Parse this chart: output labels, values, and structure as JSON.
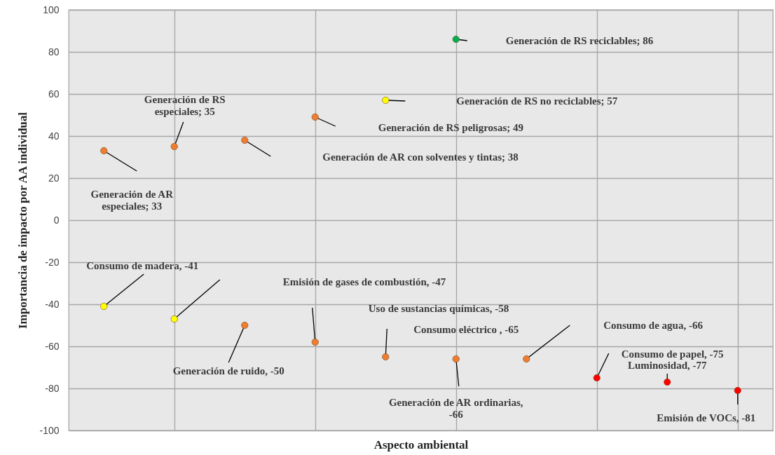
{
  "chart_data": {
    "type": "scatter",
    "xlabel": "Aspecto ambiental",
    "ylabel": "Importancia de impacto por AA individual",
    "categories": [
      null,
      null,
      null,
      null,
      null,
      null,
      null,
      null,
      null,
      null
    ],
    "ylim": [
      -100,
      100
    ],
    "yticks": [
      -100,
      -80,
      -60,
      -40,
      -20,
      0,
      20,
      40,
      60,
      80,
      100
    ],
    "grid": true,
    "marker": "circle",
    "series": [
      {
        "values": [
          33,
          35,
          38,
          49,
          57,
          86,
          null,
          null,
          null,
          null
        ],
        "colors": [
          "#ed7d31",
          "#ed7d31",
          "#ed7d31",
          "#ed7d31",
          "#ffff00",
          "#00b050",
          null,
          null,
          null,
          null
        ]
      },
      {
        "values": [
          -41,
          -47,
          -50,
          -58,
          -65,
          -66,
          -66,
          -75,
          -77,
          -81
        ],
        "colors": [
          "#ffff00",
          "#ffff00",
          "#ed7d31",
          "#ed7d31",
          "#ed7d31",
          "#ed7d31",
          "#ed7d31",
          "#ff0000",
          "#ff0000",
          "#ff0000"
        ]
      }
    ],
    "annotations": [
      "Generación de AR\nespeciales; 33",
      "Generación de RS\nespeciales; 35",
      "Generación de AR con solventes y tintas; 38",
      "Generación de RS peligrosas; 49",
      "Generación de RS no reciclables; 57",
      "Generación de RS reciclables; 86",
      "Consumo de madera, -41",
      "Emisión de gases de combustión, -47",
      "Generación de ruido, -50",
      "Uso de sustancias químicas, -58",
      "Consumo eléctrico , -65",
      "Generación de AR ordinarias,\n-66",
      "Consumo de agua, -66",
      "Consumo de papel, -75",
      "Luminosidad, -77",
      "Emisión de VOCs, -81"
    ]
  }
}
